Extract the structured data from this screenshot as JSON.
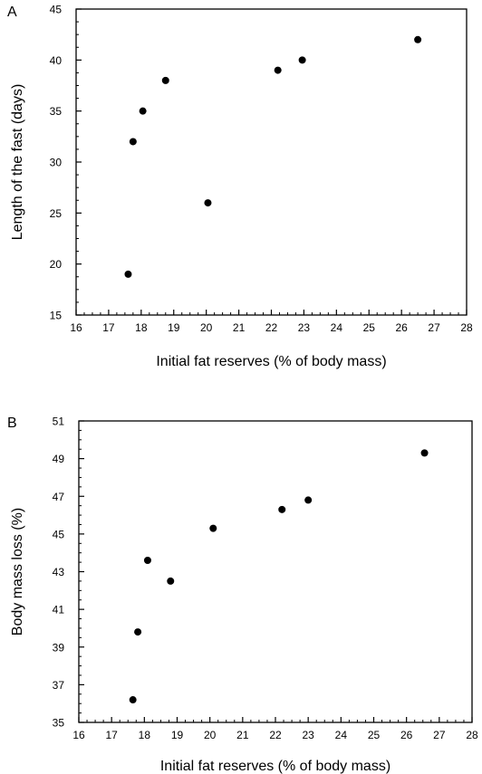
{
  "chart_data": [
    {
      "type": "scatter",
      "panel_label": "A",
      "xlabel": "Initial fat reserves (% of body mass)",
      "ylabel": "Length of the fast (days)",
      "xlim": [
        16,
        28
      ],
      "ylim": [
        15,
        45
      ],
      "xticks": [
        16,
        17,
        18,
        19,
        20,
        21,
        22,
        23,
        24,
        25,
        26,
        27,
        28
      ],
      "yticks": [
        15,
        20,
        25,
        30,
        35,
        40,
        45
      ],
      "grid": false,
      "points": [
        {
          "x": 17.6,
          "y": 19
        },
        {
          "x": 17.75,
          "y": 32
        },
        {
          "x": 18.05,
          "y": 35
        },
        {
          "x": 18.75,
          "y": 38
        },
        {
          "x": 20.05,
          "y": 26
        },
        {
          "x": 22.2,
          "y": 39
        },
        {
          "x": 22.95,
          "y": 40
        },
        {
          "x": 26.5,
          "y": 42
        }
      ]
    },
    {
      "type": "scatter",
      "panel_label": "B",
      "xlabel": "Initial fat reserves (% of body mass)",
      "ylabel": "Body mass loss (%)",
      "xlim": [
        16,
        28
      ],
      "ylim": [
        35,
        51
      ],
      "xticks": [
        16,
        17,
        18,
        19,
        20,
        21,
        22,
        23,
        24,
        25,
        26,
        27,
        28
      ],
      "yticks": [
        35,
        37,
        39,
        41,
        43,
        45,
        47,
        49,
        51
      ],
      "grid": false,
      "points": [
        {
          "x": 17.65,
          "y": 36.2
        },
        {
          "x": 17.8,
          "y": 39.8
        },
        {
          "x": 18.1,
          "y": 43.6
        },
        {
          "x": 18.8,
          "y": 42.5
        },
        {
          "x": 20.1,
          "y": 45.3
        },
        {
          "x": 22.2,
          "y": 46.3
        },
        {
          "x": 23.0,
          "y": 46.8
        },
        {
          "x": 26.55,
          "y": 49.3
        }
      ]
    }
  ]
}
